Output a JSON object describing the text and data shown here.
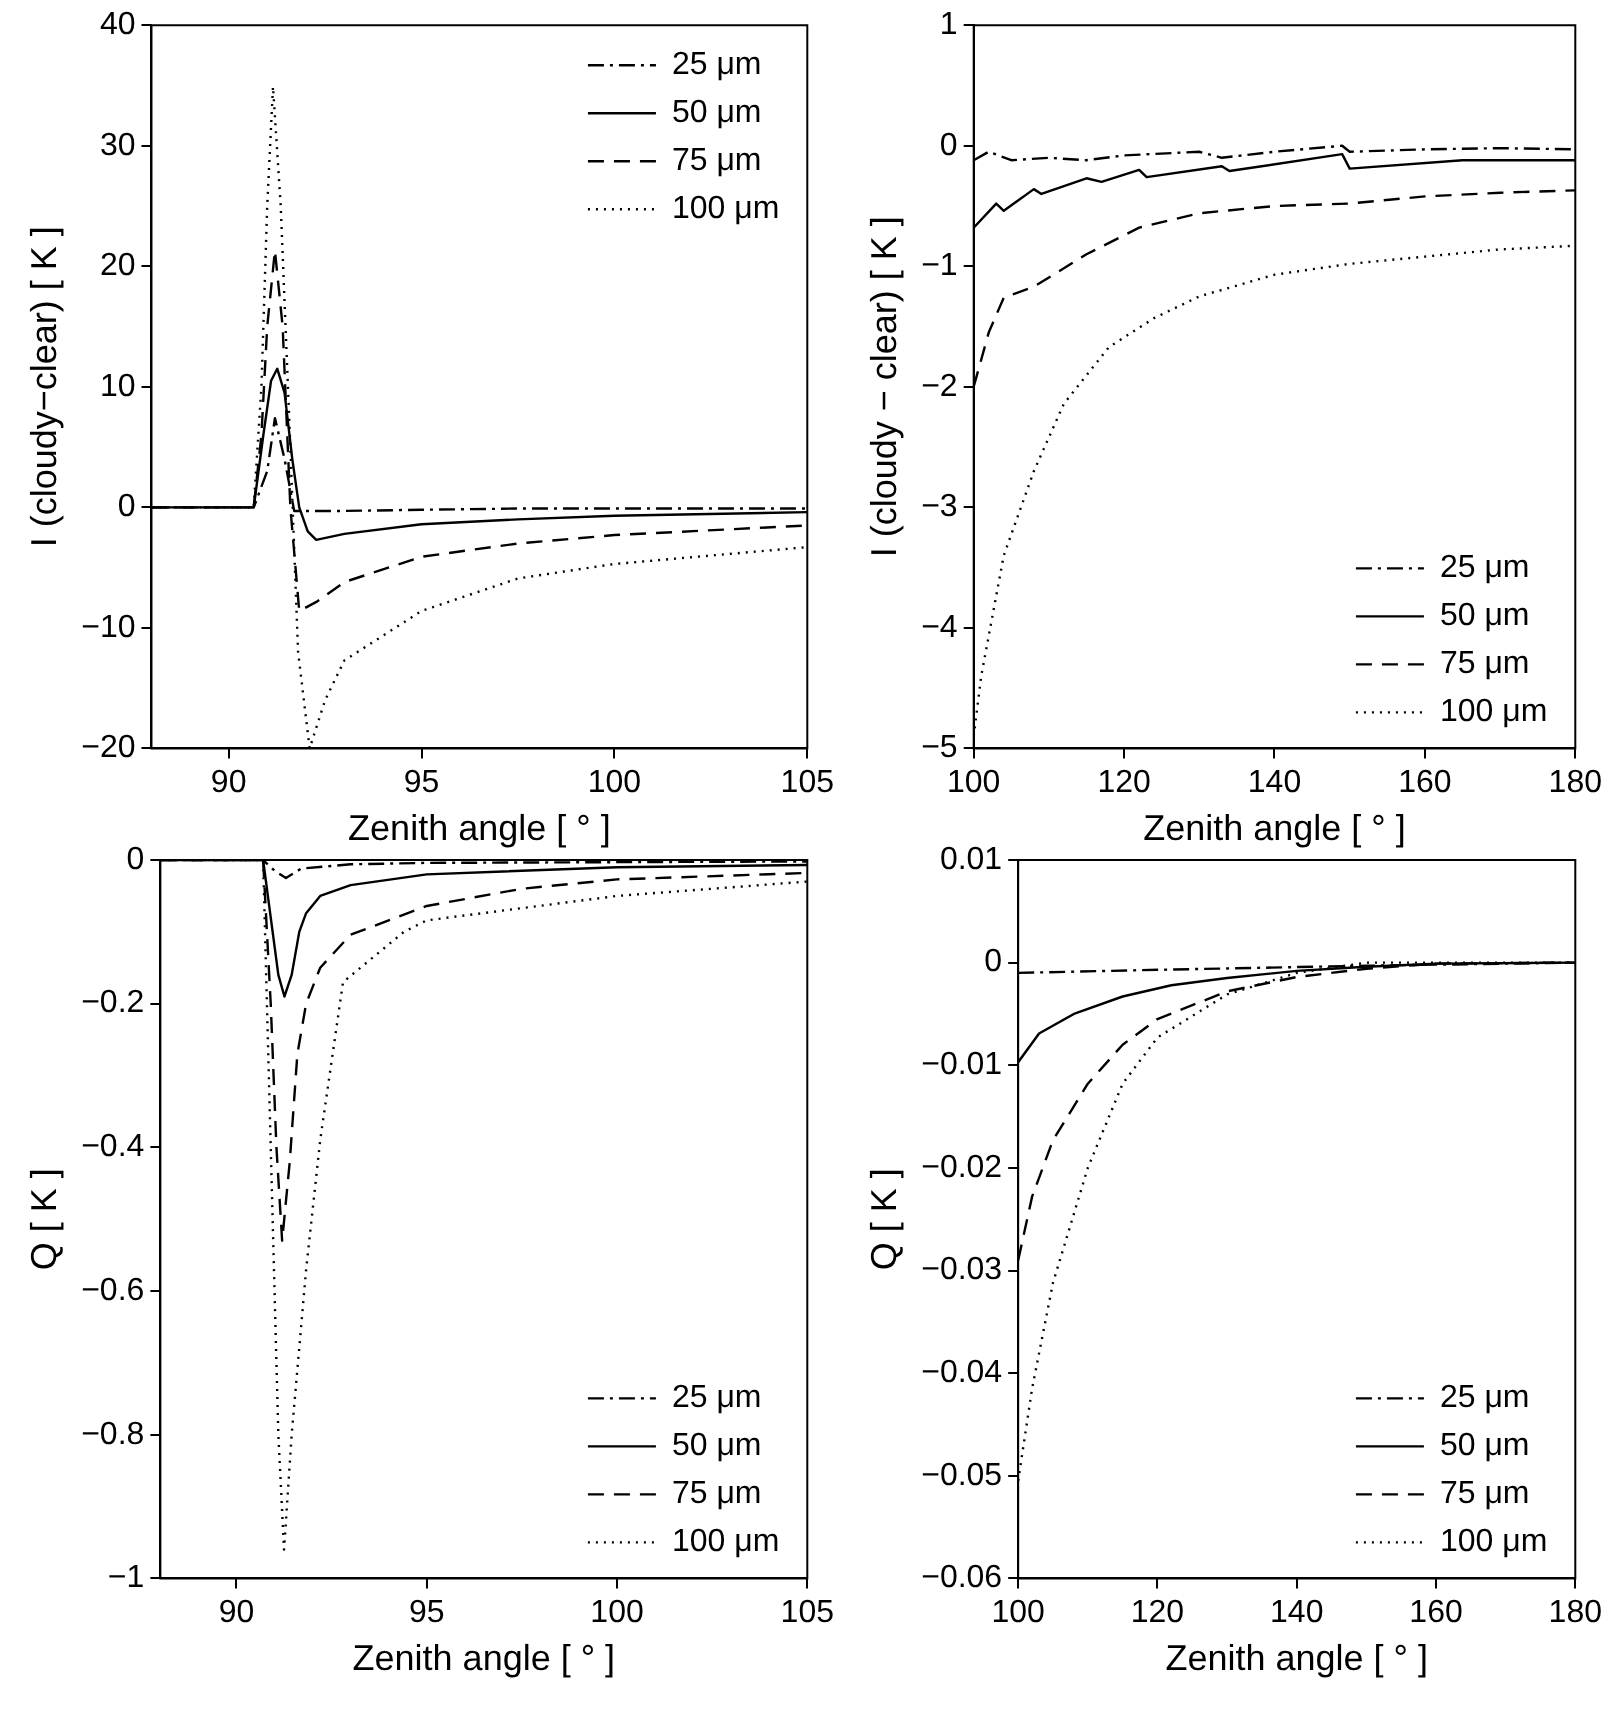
{
  "chart_data": [
    {
      "type": "line",
      "xlabel": "Zenith angle [ ° ]",
      "ylabel": "I (cloudy−clear) [ K ]",
      "xlim": [
        88,
        105
      ],
      "xticks": [
        90,
        95,
        100,
        105
      ],
      "ylim": [
        -20,
        40
      ],
      "yticks": [
        -20,
        -10,
        0,
        10,
        20,
        30,
        40
      ],
      "legend": "top right",
      "series": [
        {
          "name": "25 μm",
          "color": "#000000",
          "line_style": "dashdot",
          "x": [
            88,
            90.65,
            91.0,
            91.2,
            91.45,
            91.7,
            93,
            95,
            97.5,
            100,
            105
          ],
          "values": [
            0,
            0,
            3,
            7.4,
            4,
            -0.3,
            -0.3,
            -0.2,
            -0.1,
            -0.1,
            -0.1
          ]
        },
        {
          "name": "50 μm",
          "color": "#000000",
          "line_style": "solid",
          "x": [
            88,
            90.65,
            90.9,
            91.1,
            91.26,
            91.45,
            91.65,
            91.83,
            92.05,
            92.27,
            93,
            95,
            97.5,
            100,
            105
          ],
          "values": [
            0,
            0,
            6,
            10.5,
            11.5,
            9.5,
            4,
            0,
            -2,
            -2.7,
            -2.2,
            -1.4,
            -1.0,
            -0.7,
            -0.4
          ]
        },
        {
          "name": "75 μm",
          "color": "#000000",
          "line_style": "dashed",
          "x": [
            88,
            90.65,
            90.85,
            91.0,
            91.2,
            91.4,
            91.6,
            91.83,
            92.3,
            93,
            95,
            97.5,
            100,
            105
          ],
          "values": [
            0,
            0,
            6,
            15,
            21.3,
            15,
            0,
            -8.6,
            -7.8,
            -6.2,
            -4.1,
            -3.0,
            -2.3,
            -1.5
          ]
        },
        {
          "name": "100 μm",
          "color": "#000000",
          "line_style": "dotted",
          "x": [
            88,
            90.65,
            90.85,
            91.0,
            91.15,
            91.35,
            91.6,
            91.8,
            92.1,
            92.5,
            93,
            95,
            97.5,
            100,
            105
          ],
          "values": [
            0,
            0,
            10,
            25,
            34.9,
            25,
            5,
            -12,
            -20,
            -16,
            -12.7,
            -8.6,
            -5.9,
            -4.7,
            -3.3
          ]
        }
      ]
    },
    {
      "type": "line",
      "xlabel": "Zenith angle [ ° ]",
      "ylabel": "I (cloudy − clear) [ K ]",
      "xlim": [
        100,
        180
      ],
      "xticks": [
        100,
        120,
        140,
        160,
        180
      ],
      "ylim": [
        -5,
        1
      ],
      "yticks": [
        -5,
        -4,
        -3,
        -2,
        -1,
        0,
        1
      ],
      "legend": "bottom right",
      "series": [
        {
          "name": "25 μm",
          "color": "#000000",
          "line_style": "dashdot",
          "x": [
            100,
            102,
            105,
            110,
            115,
            120,
            130,
            133,
            140,
            149,
            150,
            160,
            170,
            180
          ],
          "values": [
            -0.12,
            -0.05,
            -0.12,
            -0.1,
            -0.12,
            -0.08,
            -0.05,
            -0.1,
            -0.05,
            0.0,
            -0.05,
            -0.03,
            -0.02,
            -0.03
          ]
        },
        {
          "name": "50 μm",
          "color": "#000000",
          "line_style": "solid",
          "x": [
            100,
            103,
            104,
            108,
            109,
            115,
            117,
            122,
            123,
            133,
            134,
            149,
            150,
            165,
            180
          ],
          "values": [
            -0.68,
            -0.48,
            -0.54,
            -0.36,
            -0.4,
            -0.27,
            -0.3,
            -0.2,
            -0.26,
            -0.17,
            -0.21,
            -0.07,
            -0.19,
            -0.12,
            -0.12
          ]
        },
        {
          "name": "75 μm",
          "color": "#000000",
          "line_style": "dashed",
          "x": [
            100,
            102,
            104,
            108,
            115,
            122,
            130,
            140,
            150,
            160,
            170,
            180
          ],
          "values": [
            -2.0,
            -1.55,
            -1.26,
            -1.17,
            -0.9,
            -0.68,
            -0.56,
            -0.5,
            -0.48,
            -0.42,
            -0.39,
            -0.37
          ]
        },
        {
          "name": "100 μm",
          "color": "#000000",
          "line_style": "dotted",
          "x": [
            100,
            101,
            104,
            108,
            112,
            118,
            124,
            130,
            140,
            150,
            160,
            170,
            180
          ],
          "values": [
            -4.9,
            -4.4,
            -3.4,
            -2.7,
            -2.14,
            -1.67,
            -1.43,
            -1.25,
            -1.07,
            -0.98,
            -0.92,
            -0.86,
            -0.83
          ]
        }
      ]
    },
    {
      "type": "line",
      "xlabel": "Zenith angle [ ° ]",
      "ylabel": "Q [ K ]",
      "xlim": [
        88,
        105
      ],
      "xticks": [
        90,
        95,
        100,
        105
      ],
      "ylim": [
        -1,
        0
      ],
      "yticks": [
        -1,
        -0.8,
        -0.6,
        -0.4,
        -0.2,
        0
      ],
      "legend": "bottom right",
      "series": [
        {
          "name": "25 μm",
          "color": "#000000",
          "line_style": "dashdot",
          "x": [
            88,
            90.7,
            91.0,
            91.3,
            91.7,
            93,
            95,
            100,
            105
          ],
          "values": [
            0,
            0,
            -0.015,
            -0.025,
            -0.012,
            -0.006,
            -0.004,
            -0.003,
            -0.002
          ]
        },
        {
          "name": "50 μm",
          "color": "#000000",
          "line_style": "solid",
          "x": [
            88,
            90.7,
            90.9,
            91.1,
            91.26,
            91.45,
            91.65,
            91.83,
            92.2,
            93,
            95,
            100,
            105
          ],
          "values": [
            0,
            0,
            -0.08,
            -0.16,
            -0.19,
            -0.16,
            -0.1,
            -0.074,
            -0.05,
            -0.035,
            -0.02,
            -0.01,
            -0.007
          ]
        },
        {
          "name": "75 μm",
          "color": "#000000",
          "line_style": "dashed",
          "x": [
            88,
            90.7,
            90.9,
            91.05,
            91.2,
            91.4,
            91.6,
            91.83,
            92.2,
            93,
            95,
            97.5,
            100,
            105
          ],
          "values": [
            0,
            0,
            -0.2,
            -0.4,
            -0.53,
            -0.42,
            -0.27,
            -0.2,
            -0.15,
            -0.104,
            -0.064,
            -0.04,
            -0.027,
            -0.018
          ]
        },
        {
          "name": "100 μm",
          "color": "#000000",
          "line_style": "dotted",
          "x": [
            88,
            90.7,
            90.9,
            91.1,
            91.25,
            91.45,
            91.83,
            92.2,
            92.8,
            94.4,
            95,
            100,
            105
          ],
          "values": [
            0,
            0,
            -0.4,
            -0.8,
            -0.96,
            -0.8,
            -0.57,
            -0.39,
            -0.17,
            -0.1,
            -0.084,
            -0.05,
            -0.03
          ]
        }
      ]
    },
    {
      "type": "line",
      "xlabel": "Zenith angle [ ° ]",
      "ylabel": "Q [ K ]",
      "xlim": [
        100,
        180
      ],
      "xticks": [
        100,
        120,
        140,
        160,
        180
      ],
      "ylim": [
        -0.06,
        0.01
      ],
      "yticks": [
        -0.06,
        -0.05,
        -0.04,
        -0.03,
        -0.02,
        -0.01,
        0,
        0.01
      ],
      "legend": "bottom right",
      "series": [
        {
          "name": "25 μm",
          "color": "#000000",
          "line_style": "dashdot",
          "x": [
            100,
            120,
            150,
            180
          ],
          "values": [
            -0.001,
            -0.0007,
            -0.0003,
            0
          ]
        },
        {
          "name": "50 μm",
          "color": "#000000",
          "line_style": "solid",
          "x": [
            100,
            103,
            108,
            115,
            122,
            130,
            140,
            150,
            160,
            180
          ],
          "values": [
            -0.0097,
            -0.0069,
            -0.005,
            -0.0033,
            -0.0022,
            -0.0015,
            -0.0008,
            -0.0004,
            -0.0001,
            0
          ]
        },
        {
          "name": "75 μm",
          "color": "#000000",
          "line_style": "dashed",
          "x": [
            100,
            102,
            105,
            110,
            115,
            120,
            130,
            140,
            150,
            160,
            180
          ],
          "values": [
            -0.029,
            -0.0228,
            -0.0173,
            -0.0118,
            -0.008,
            -0.0055,
            -0.0028,
            -0.0014,
            -0.0006,
            -0.0001,
            0
          ]
        },
        {
          "name": "100 μm",
          "color": "#000000",
          "line_style": "dotted",
          "x": [
            100,
            102,
            105,
            110,
            115,
            120,
            130,
            140,
            150,
            160,
            180
          ],
          "values": [
            -0.0505,
            -0.0415,
            -0.0312,
            -0.02,
            -0.0118,
            -0.0073,
            -0.0031,
            -0.001,
            0,
            0,
            0
          ]
        }
      ]
    }
  ]
}
